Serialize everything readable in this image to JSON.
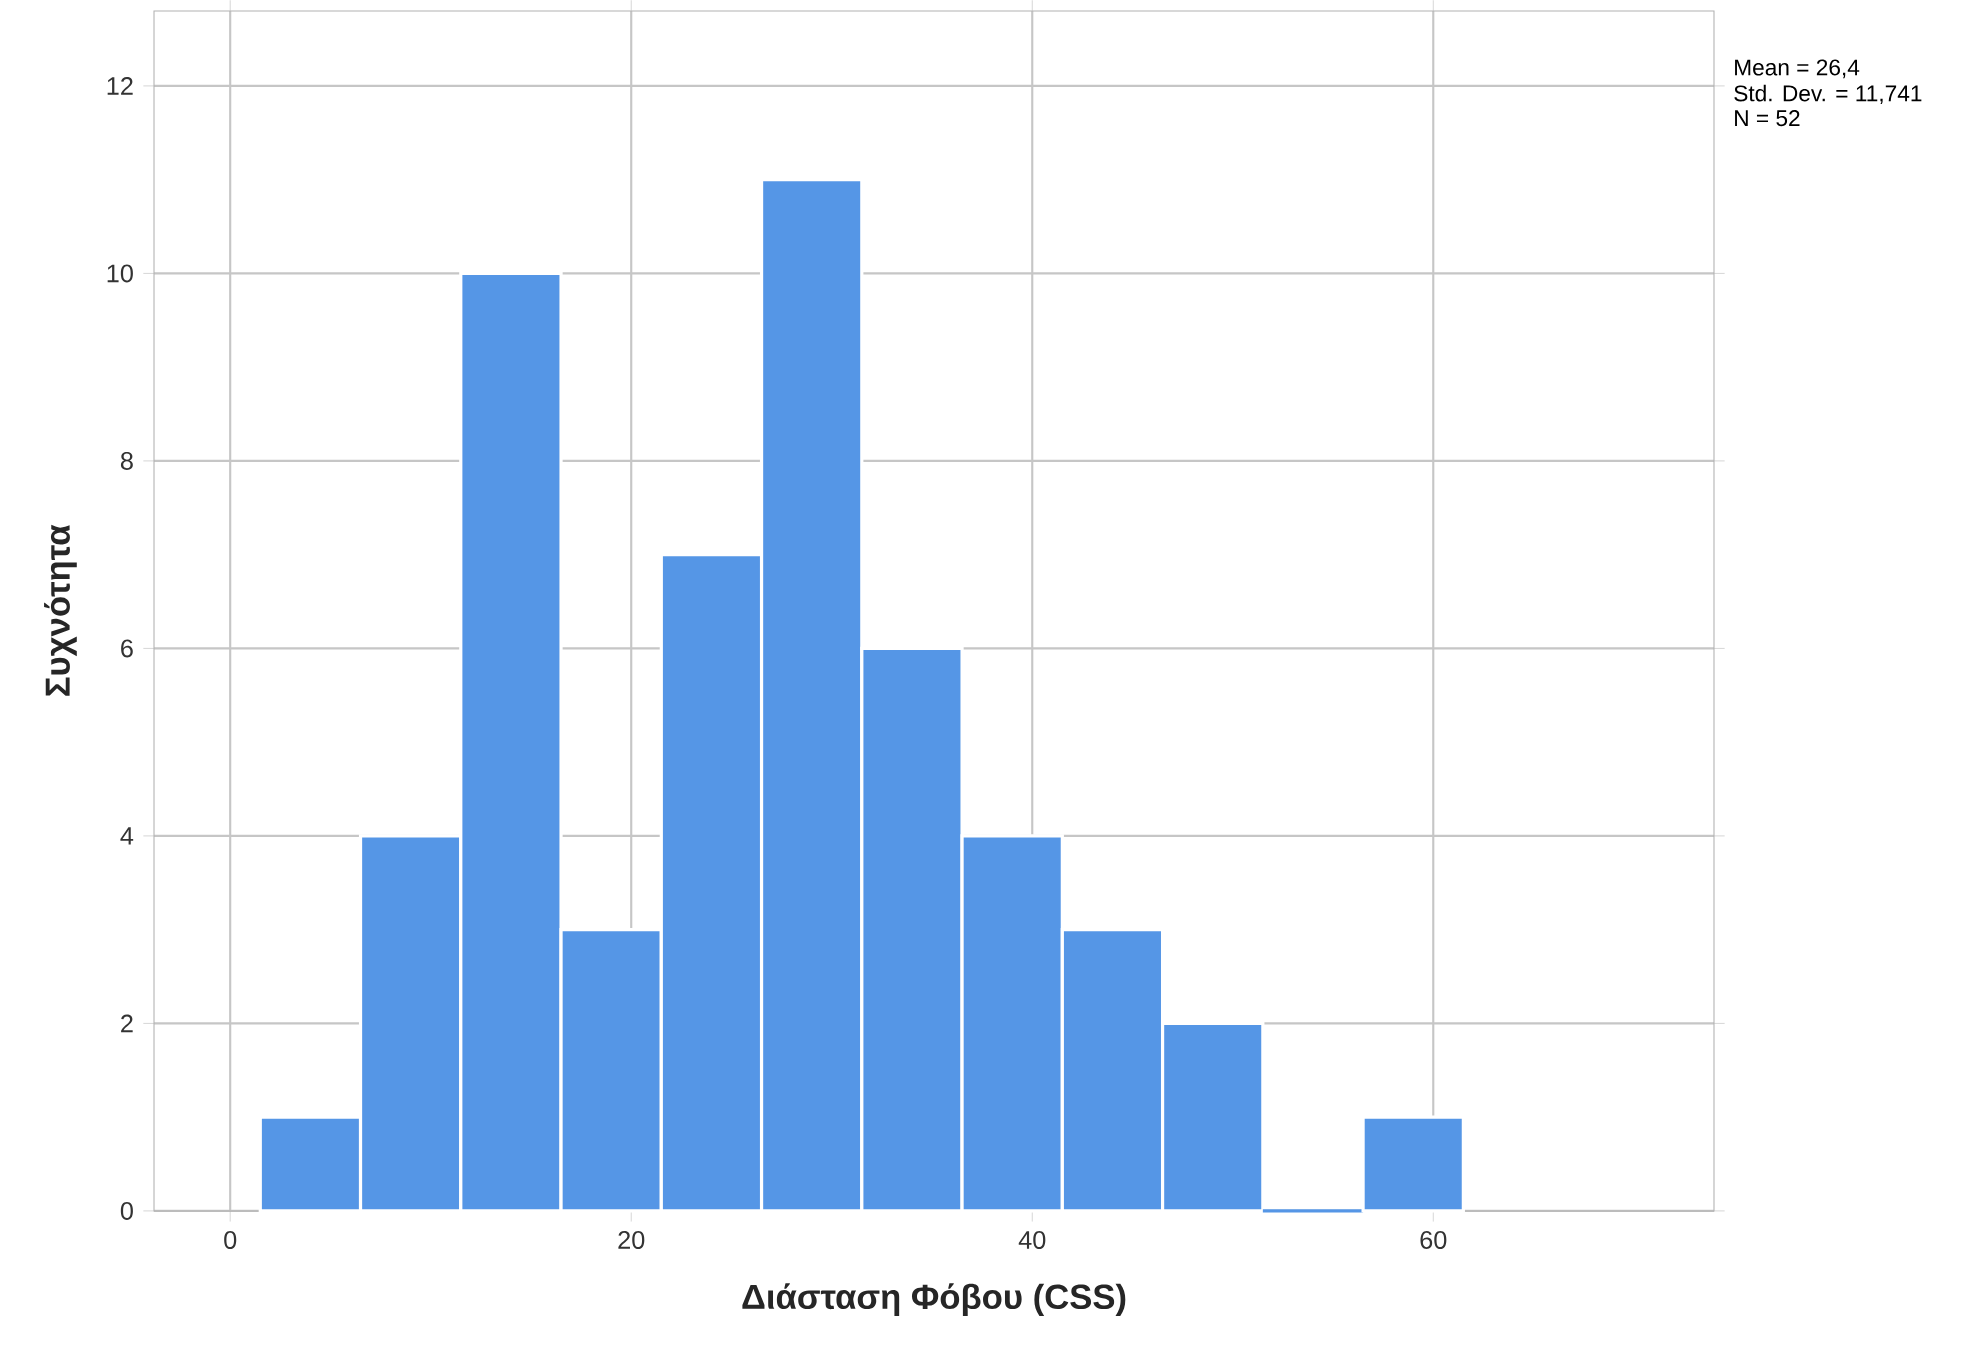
{
  "chart_data": {
    "type": "histogram",
    "xlabel": "Διάσταση Φόβου (CSS)",
    "ylabel": "Συχνότητα",
    "bins": [
      1.5,
      6.5,
      11.5,
      16.5,
      21.5,
      26.5,
      31.5,
      36.5,
      41.5,
      46.5,
      51.5,
      56.5,
      61.5
    ],
    "values": [
      1,
      4,
      10,
      3,
      7,
      11,
      6,
      4,
      3,
      2,
      0,
      1
    ],
    "color": "#5596e6",
    "xlim": [
      -3.8,
      74
    ],
    "ylim": [
      0,
      12.8
    ],
    "xticks": [
      0,
      20,
      40,
      60
    ],
    "yticks": [
      0,
      2,
      4,
      6,
      8,
      10,
      12
    ],
    "grid": true,
    "annotations": [
      "Mean = 26,4",
      "Std. Dev. = 11,741",
      "N = 52"
    ]
  }
}
